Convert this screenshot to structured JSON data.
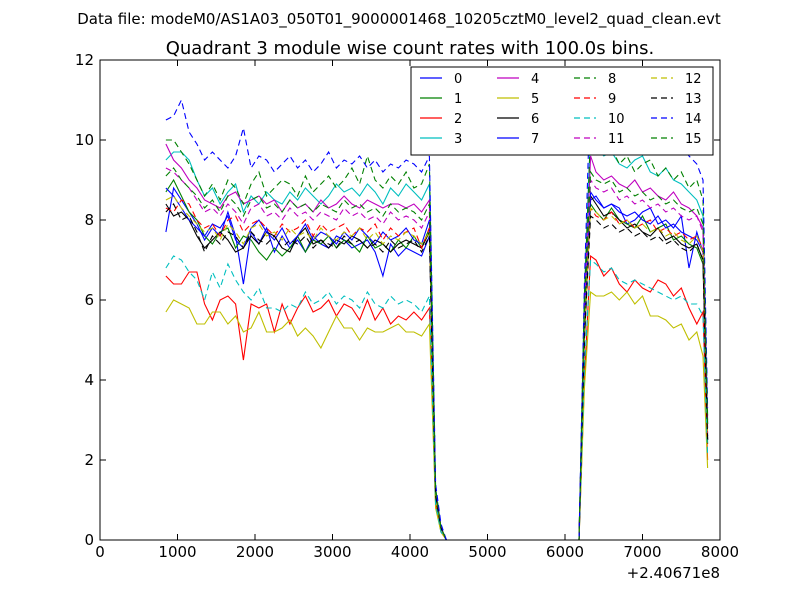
{
  "chart_data": {
    "type": "line",
    "suptitle": "Data file: modeM0/AS1A03_050T01_9000001468_10205cztM0_level2_quad_clean.evt",
    "title": "Quadrant 3 module wise count rates with 100.0s bins.",
    "xlabel": "",
    "ylabel": "",
    "x_offset_label": "+2.40671e8",
    "xlim": [
      0,
      8000
    ],
    "ylim": [
      0,
      12
    ],
    "x_ticks": [
      0,
      1000,
      2000,
      3000,
      4000,
      5000,
      6000,
      7000,
      8000
    ],
    "y_ticks": [
      0,
      2,
      4,
      6,
      8,
      10,
      12
    ],
    "legend_position": "top-right",
    "legend_columns": 4,
    "x": [
      850,
      950,
      1050,
      1150,
      1250,
      1350,
      1450,
      1550,
      1650,
      1750,
      1850,
      1950,
      2050,
      2150,
      2250,
      2350,
      2450,
      2550,
      2650,
      2750,
      2850,
      2950,
      3050,
      3150,
      3250,
      3350,
      3450,
      3550,
      3650,
      3750,
      3850,
      3950,
      4050,
      4150,
      4250,
      4330,
      4400,
      4470,
      6180,
      6250,
      6330,
      6400,
      6500,
      6600,
      6700,
      6800,
      6900,
      7000,
      7100,
      7200,
      7300,
      7400,
      7500,
      7600,
      7700,
      7780,
      7840
    ],
    "series": [
      {
        "name": "0",
        "color": "#0000ff",
        "dashed": false,
        "values": [
          7.7,
          8.8,
          8.5,
          8.2,
          7.9,
          7.5,
          7.8,
          7.6,
          8.2,
          7.6,
          6.4,
          7.7,
          7.4,
          7.8,
          7.2,
          7.6,
          7.3,
          7.5,
          7.2,
          7.6,
          7.4,
          7.3,
          7.6,
          7.5,
          7.3,
          7.4,
          7.5,
          7.2,
          6.6,
          7.4,
          7.1,
          7.3,
          7.2,
          7.1,
          7.6,
          1.2,
          0.3,
          0,
          0,
          5.2,
          8.5,
          8.6,
          8.3,
          8.4,
          8.3,
          7.9,
          8.0,
          8.2,
          8.3,
          7.9,
          8.0,
          7.8,
          8.1,
          6.8,
          7.7,
          7.2,
          2.5
        ]
      },
      {
        "name": "1",
        "color": "#008000",
        "dashed": false,
        "values": [
          8.7,
          9.0,
          8.6,
          8.2,
          8.0,
          7.6,
          7.4,
          7.7,
          7.8,
          7.3,
          7.6,
          7.5,
          7.2,
          7.0,
          7.3,
          7.1,
          7.3,
          7.6,
          7.2,
          7.5,
          7.4,
          7.6,
          7.3,
          7.5,
          7.4,
          7.2,
          7.6,
          7.3,
          7.4,
          7.2,
          7.5,
          7.3,
          7.6,
          7.3,
          7.8,
          1.1,
          0.3,
          0,
          0,
          5.0,
          8.4,
          8.2,
          8.0,
          8.3,
          8.0,
          7.9,
          7.8,
          8.1,
          7.7,
          7.8,
          7.9,
          7.5,
          7.6,
          7.4,
          7.3,
          6.9,
          2.4
        ]
      },
      {
        "name": "2",
        "color": "#ff0000",
        "dashed": false,
        "values": [
          6.6,
          6.4,
          6.4,
          6.7,
          6.7,
          5.9,
          5.5,
          6.0,
          6.1,
          5.9,
          4.5,
          5.9,
          5.8,
          5.9,
          5.2,
          5.9,
          5.4,
          5.8,
          6.1,
          5.7,
          5.8,
          6.0,
          5.6,
          5.9,
          5.8,
          5.5,
          6.0,
          5.5,
          5.8,
          5.4,
          5.6,
          5.5,
          5.7,
          5.5,
          5.8,
          0.9,
          0.2,
          0,
          0,
          4.0,
          7.1,
          7.0,
          6.6,
          6.8,
          6.4,
          6.2,
          6.5,
          6.3,
          6.2,
          6.5,
          6.4,
          6.1,
          6.3,
          5.8,
          5.4,
          5.7,
          2.0
        ]
      },
      {
        "name": "3",
        "color": "#00bfbf",
        "dashed": false,
        "values": [
          9.5,
          9.7,
          9.7,
          9.5,
          9.0,
          8.6,
          8.8,
          8.4,
          8.7,
          8.9,
          8.2,
          8.6,
          8.4,
          8.7,
          8.5,
          8.4,
          8.7,
          8.5,
          8.8,
          8.6,
          8.4,
          8.6,
          8.9,
          8.7,
          8.8,
          8.6,
          8.9,
          8.7,
          8.4,
          8.8,
          8.6,
          8.9,
          8.7,
          8.5,
          8.9,
          1.3,
          0.3,
          0,
          0,
          6.0,
          10.2,
          9.8,
          9.6,
          9.7,
          9.4,
          9.3,
          9.5,
          9.6,
          9.2,
          9.1,
          9.3,
          9.0,
          8.9,
          8.7,
          8.5,
          8.1,
          3.0
        ]
      },
      {
        "name": "4",
        "color": "#bf00bf",
        "dashed": false,
        "values": [
          9.9,
          9.5,
          9.3,
          9.0,
          8.8,
          8.5,
          8.4,
          8.3,
          8.6,
          8.7,
          8.4,
          8.5,
          8.6,
          8.4,
          8.5,
          8.2,
          8.5,
          8.3,
          8.4,
          8.2,
          8.5,
          8.3,
          8.4,
          8.6,
          8.4,
          8.3,
          8.5,
          8.4,
          8.3,
          8.4,
          8.4,
          8.3,
          8.4,
          8.2,
          8.5,
          1.2,
          0.3,
          0,
          0,
          5.8,
          9.6,
          9.2,
          9.0,
          9.1,
          8.9,
          8.8,
          9.0,
          8.7,
          8.8,
          8.6,
          8.5,
          8.7,
          8.4,
          8.3,
          8.1,
          7.8,
          2.9
        ]
      },
      {
        "name": "5",
        "color": "#bfbf00",
        "dashed": false,
        "values": [
          5.7,
          6.0,
          5.9,
          5.8,
          5.4,
          5.4,
          5.7,
          5.7,
          5.4,
          5.6,
          5.2,
          5.3,
          5.7,
          5.2,
          5.2,
          5.3,
          5.5,
          5.1,
          5.3,
          5.1,
          4.8,
          5.2,
          5.6,
          5.3,
          5.3,
          5.0,
          5.3,
          5.2,
          5.2,
          5.3,
          5.4,
          5.2,
          5.2,
          5.1,
          5.4,
          0.8,
          0.2,
          0,
          0,
          3.8,
          6.2,
          6.1,
          6.1,
          6.2,
          6.0,
          6.2,
          5.9,
          6.1,
          5.6,
          5.6,
          5.5,
          5.3,
          5.4,
          5.0,
          5.2,
          4.6,
          1.8
        ]
      },
      {
        "name": "6",
        "color": "#000000",
        "dashed": false,
        "values": [
          8.4,
          8.1,
          8.2,
          8.0,
          7.6,
          7.3,
          7.5,
          7.7,
          7.5,
          7.2,
          7.3,
          7.6,
          7.4,
          7.7,
          7.6,
          7.3,
          7.2,
          7.6,
          7.8,
          7.4,
          7.5,
          7.3,
          7.5,
          7.4,
          7.6,
          7.5,
          7.3,
          7.5,
          7.4,
          7.2,
          7.4,
          7.5,
          7.4,
          7.3,
          7.7,
          1.1,
          0.3,
          0,
          0,
          5.1,
          8.6,
          8.4,
          8.1,
          8.2,
          8.0,
          7.8,
          7.9,
          7.7,
          7.6,
          7.8,
          7.5,
          7.6,
          7.4,
          7.3,
          7.4,
          7.0,
          2.5
        ]
      },
      {
        "name": "7",
        "color": "#0000ff",
        "dashed": false,
        "values": [
          8.8,
          8.6,
          8.3,
          8.0,
          7.8,
          7.6,
          7.9,
          7.8,
          8.1,
          7.5,
          7.3,
          7.8,
          8.0,
          7.7,
          7.5,
          7.8,
          7.4,
          7.6,
          7.9,
          7.5,
          7.7,
          7.6,
          7.4,
          7.7,
          7.5,
          7.8,
          7.6,
          7.4,
          7.7,
          7.5,
          7.6,
          7.8,
          7.5,
          7.4,
          8.0,
          1.2,
          0.3,
          0,
          0,
          5.3,
          8.7,
          8.5,
          8.3,
          8.4,
          8.2,
          8.1,
          8.2,
          8.0,
          7.9,
          8.1,
          7.8,
          7.9,
          7.7,
          7.6,
          7.5,
          7.2,
          2.6
        ]
      },
      {
        "name": "8",
        "color": "#008000",
        "dashed": true,
        "values": [
          10.0,
          10.0,
          9.7,
          9.4,
          9.0,
          8.6,
          8.9,
          8.5,
          9.0,
          8.8,
          8.4,
          8.9,
          9.2,
          8.6,
          8.8,
          9.0,
          8.9,
          8.6,
          9.1,
          8.7,
          8.9,
          9.1,
          8.8,
          9.0,
          9.3,
          8.9,
          9.6,
          9.0,
          8.8,
          9.1,
          8.9,
          9.2,
          8.8,
          8.9,
          9.4,
          1.3,
          0.3,
          0,
          0,
          6.1,
          10.2,
          9.9,
          9.6,
          9.8,
          9.4,
          9.6,
          9.2,
          9.4,
          9.5,
          9.1,
          9.3,
          9.0,
          9.2,
          8.8,
          9.0,
          8.5,
          3.1
        ]
      },
      {
        "name": "9",
        "color": "#ff0000",
        "dashed": true,
        "values": [
          8.3,
          8.2,
          8.5,
          8.4,
          8.0,
          7.8,
          7.9,
          7.6,
          8.0,
          8.1,
          7.7,
          7.9,
          8.0,
          7.8,
          7.6,
          7.9,
          7.7,
          7.8,
          8.0,
          7.6,
          7.9,
          7.7,
          7.8,
          7.9,
          7.6,
          7.8,
          7.7,
          7.9,
          7.5,
          7.8,
          7.6,
          7.7,
          7.8,
          7.3,
          7.8,
          1.1,
          0.3,
          0,
          0,
          5.2,
          8.3,
          8.1,
          8.0,
          8.2,
          7.9,
          8.0,
          7.8,
          7.9,
          8.0,
          7.7,
          7.8,
          7.6,
          7.7,
          7.5,
          7.6,
          7.3,
          2.6
        ]
      },
      {
        "name": "10",
        "color": "#00bfbf",
        "dashed": true,
        "values": [
          6.8,
          7.1,
          7.0,
          6.7,
          6.5,
          6.0,
          6.7,
          6.3,
          6.9,
          6.5,
          6.2,
          6.0,
          6.3,
          5.8,
          5.8,
          5.7,
          5.9,
          5.8,
          6.2,
          5.9,
          6.0,
          6.2,
          5.9,
          6.1,
          6.0,
          5.8,
          6.2,
          5.9,
          5.8,
          6.1,
          5.9,
          6.0,
          5.9,
          5.7,
          6.1,
          0.9,
          0.2,
          0,
          0,
          4.3,
          7.0,
          6.9,
          6.7,
          6.8,
          6.5,
          6.4,
          6.5,
          6.4,
          6.3,
          6.2,
          6.1,
          6.0,
          6.1,
          5.9,
          5.9,
          5.6,
          2.1
        ]
      },
      {
        "name": "11",
        "color": "#bf00bf",
        "dashed": true,
        "values": [
          9.3,
          9.2,
          9.0,
          8.8,
          8.5,
          8.2,
          8.3,
          8.1,
          8.4,
          8.2,
          7.9,
          8.3,
          8.4,
          8.1,
          8.2,
          8.0,
          8.3,
          8.1,
          8.2,
          8.0,
          8.2,
          8.1,
          8.0,
          8.3,
          8.1,
          8.2,
          8.0,
          8.1,
          7.9,
          8.2,
          8.0,
          8.1,
          8.0,
          7.8,
          8.2,
          1.2,
          0.3,
          0,
          0,
          5.6,
          9.0,
          8.8,
          8.7,
          8.8,
          8.5,
          8.6,
          8.4,
          8.5,
          8.3,
          8.4,
          8.2,
          8.3,
          8.1,
          8.0,
          8.1,
          7.7,
          2.8
        ]
      },
      {
        "name": "12",
        "color": "#bfbf00",
        "dashed": true,
        "values": [
          8.5,
          8.6,
          8.3,
          8.1,
          7.9,
          7.7,
          7.8,
          7.5,
          7.9,
          7.7,
          7.4,
          7.8,
          7.9,
          7.6,
          7.7,
          7.5,
          7.8,
          7.6,
          7.7,
          7.5,
          7.8,
          7.6,
          7.5,
          7.7,
          7.6,
          7.8,
          7.5,
          7.7,
          7.4,
          7.6,
          7.5,
          7.7,
          7.6,
          7.4,
          7.7,
          1.1,
          0.3,
          0,
          0,
          5.2,
          8.3,
          8.2,
          8.0,
          8.1,
          7.9,
          8.0,
          7.8,
          7.9,
          7.7,
          7.8,
          7.6,
          7.7,
          7.5,
          7.4,
          7.6,
          7.2,
          2.6
        ]
      },
      {
        "name": "13",
        "color": "#000000",
        "dashed": true,
        "values": [
          8.2,
          8.4,
          8.0,
          8.1,
          7.7,
          7.2,
          7.6,
          7.4,
          7.7,
          7.6,
          7.3,
          7.7,
          7.5,
          7.4,
          7.6,
          7.3,
          7.5,
          7.4,
          7.6,
          7.3,
          7.5,
          7.4,
          7.3,
          7.6,
          7.4,
          7.5,
          7.3,
          7.4,
          7.2,
          7.5,
          7.3,
          7.4,
          7.5,
          7.2,
          7.6,
          1.1,
          0.3,
          0,
          0,
          5.0,
          8.1,
          8.0,
          7.8,
          7.9,
          7.7,
          7.8,
          7.6,
          7.7,
          7.5,
          7.6,
          7.4,
          7.5,
          7.3,
          7.2,
          7.4,
          7.0,
          2.5
        ]
      },
      {
        "name": "14",
        "color": "#0000ff",
        "dashed": true,
        "values": [
          10.5,
          10.6,
          11.0,
          10.2,
          9.9,
          9.5,
          9.7,
          9.5,
          9.3,
          9.6,
          10.3,
          9.3,
          9.6,
          9.5,
          9.2,
          9.4,
          9.6,
          9.3,
          9.5,
          9.2,
          9.4,
          9.7,
          9.3,
          9.5,
          9.4,
          9.6,
          9.3,
          9.5,
          9.2,
          9.4,
          9.3,
          9.5,
          9.4,
          9.2,
          9.6,
          1.4,
          0.4,
          0,
          0,
          6.4,
          11.5,
          10.9,
          10.3,
          10.6,
          10.1,
          10.4,
          9.9,
          10.2,
          10.0,
          9.8,
          10.1,
          9.7,
          9.9,
          9.6,
          9.4,
          9.0,
          3.3
        ]
      },
      {
        "name": "15",
        "color": "#008000",
        "dashed": true,
        "values": [
          9.1,
          9.3,
          9.0,
          8.8,
          8.6,
          8.3,
          8.5,
          8.2,
          8.6,
          8.4,
          8.1,
          8.5,
          8.6,
          8.3,
          8.4,
          8.2,
          8.5,
          8.3,
          8.4,
          8.2,
          8.4,
          8.3,
          8.2,
          8.5,
          8.3,
          8.4,
          8.2,
          8.3,
          8.1,
          8.4,
          8.2,
          8.3,
          8.2,
          8.0,
          8.4,
          1.2,
          0.3,
          0,
          0,
          5.7,
          9.2,
          9.0,
          8.9,
          9.0,
          8.7,
          8.8,
          8.6,
          8.7,
          8.5,
          8.6,
          8.4,
          8.5,
          8.3,
          8.2,
          8.3,
          7.9,
          2.9
        ]
      }
    ]
  }
}
